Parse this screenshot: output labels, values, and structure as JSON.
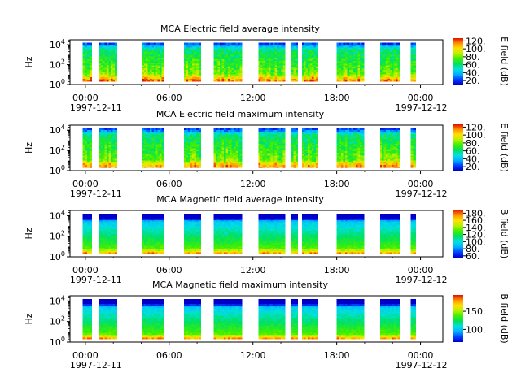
{
  "colors": {
    "colormap": [
      "#0000c8",
      "#0040ff",
      "#00b0ff",
      "#00e0e0",
      "#00e060",
      "#40f000",
      "#b8f000",
      "#ffe000",
      "#ff9000",
      "#e01000"
    ],
    "axes": "#000000",
    "background": "#ffffff"
  },
  "chart_data": [
    {
      "type": "heatmap",
      "title": "MCA  Electric field average intensity",
      "ylabel": "Hz",
      "yscale": "log",
      "yticks": [
        {
          "base": "10",
          "exp": "0"
        },
        {
          "base": "10",
          "exp": "2"
        },
        {
          "base": "10",
          "exp": "4"
        }
      ],
      "xticks": [
        "00:00",
        "06:00",
        "12:00",
        "18:00",
        "00:00"
      ],
      "xtick_hours": [
        0,
        6,
        12,
        18,
        24
      ],
      "date_start": "1997-12-11",
      "date_end": "1997-12-12",
      "colorbar": {
        "label": "E field (dB)",
        "ticks": [
          "20.",
          "40.",
          "60.",
          "80.",
          "100.",
          "120."
        ],
        "tick_values": [
          20,
          40,
          60,
          80,
          100,
          120
        ],
        "range": [
          10,
          127
        ]
      },
      "data_intervals_hours": [
        [
          -0.2,
          0.45
        ],
        [
          0.95,
          2.25
        ],
        [
          4.05,
          5.6
        ],
        [
          7.05,
          8.25
        ],
        [
          9.2,
          11.2
        ],
        [
          12.4,
          14.3
        ],
        [
          14.75,
          15.2
        ],
        [
          15.5,
          16.65
        ],
        [
          18.0,
          19.95
        ],
        [
          21.1,
          22.5
        ],
        [
          23.3,
          23.65
        ]
      ],
      "level_profile": "hot"
    },
    {
      "type": "heatmap",
      "title": "MCA  Electric field maximum intensity",
      "ylabel": "Hz",
      "yscale": "log",
      "yticks": [
        {
          "base": "10",
          "exp": "0"
        },
        {
          "base": "10",
          "exp": "2"
        },
        {
          "base": "10",
          "exp": "4"
        }
      ],
      "xticks": [
        "00:00",
        "06:00",
        "12:00",
        "18:00",
        "00:00"
      ],
      "xtick_hours": [
        0,
        6,
        12,
        18,
        24
      ],
      "date_start": "1997-12-11",
      "date_end": "1997-12-12",
      "colorbar": {
        "label": "E field (dB)",
        "ticks": [
          "20.",
          "40.",
          "60.",
          "80.",
          "100.",
          "120."
        ],
        "tick_values": [
          20,
          40,
          60,
          80,
          100,
          120
        ],
        "range": [
          10,
          127
        ]
      },
      "data_intervals_hours": [
        [
          -0.2,
          0.45
        ],
        [
          0.95,
          2.25
        ],
        [
          4.05,
          5.6
        ],
        [
          7.05,
          8.25
        ],
        [
          9.2,
          11.2
        ],
        [
          12.4,
          14.3
        ],
        [
          14.75,
          15.2
        ],
        [
          15.5,
          16.65
        ],
        [
          18.0,
          19.95
        ],
        [
          21.1,
          22.5
        ],
        [
          23.3,
          23.65
        ]
      ],
      "level_profile": "hot"
    },
    {
      "type": "heatmap",
      "title": "MCA  Magnetic field average intensity",
      "ylabel": "Hz",
      "yscale": "log",
      "yticks": [
        {
          "base": "10",
          "exp": "0"
        },
        {
          "base": "10",
          "exp": "2"
        },
        {
          "base": "10",
          "exp": "4"
        }
      ],
      "xticks": [
        "00:00",
        "06:00",
        "12:00",
        "18:00",
        "00:00"
      ],
      "xtick_hours": [
        0,
        6,
        12,
        18,
        24
      ],
      "date_start": "1997-12-11",
      "date_end": "1997-12-12",
      "colorbar": {
        "label": "B field (dB)",
        "ticks": [
          "60.",
          "80.",
          "100.",
          "120.",
          "140.",
          "160.",
          "180."
        ],
        "tick_values": [
          60,
          80,
          100,
          120,
          140,
          160,
          180
        ],
        "range": [
          55,
          190
        ]
      },
      "data_intervals_hours": [
        [
          -0.2,
          0.45
        ],
        [
          0.95,
          2.25
        ],
        [
          4.05,
          5.6
        ],
        [
          7.05,
          8.25
        ],
        [
          9.2,
          11.2
        ],
        [
          12.4,
          14.3
        ],
        [
          14.75,
          15.2
        ],
        [
          15.5,
          16.65
        ],
        [
          18.0,
          19.95
        ],
        [
          21.1,
          22.5
        ],
        [
          23.3,
          23.65
        ]
      ],
      "level_profile": "cool"
    },
    {
      "type": "heatmap",
      "title": "MCA  Magnetic field maximum intensity",
      "ylabel": "Hz",
      "yscale": "log",
      "yticks": [
        {
          "base": "10",
          "exp": "0"
        },
        {
          "base": "10",
          "exp": "2"
        },
        {
          "base": "10",
          "exp": "4"
        }
      ],
      "xticks": [
        "00:00",
        "06:00",
        "12:00",
        "18:00",
        "00:00"
      ],
      "xtick_hours": [
        0,
        6,
        12,
        18,
        24
      ],
      "date_start": "1997-12-11",
      "date_end": "1997-12-12",
      "colorbar": {
        "label": "B field (dB)",
        "ticks": [
          "100.",
          "150."
        ],
        "tick_values": [
          100,
          150
        ],
        "range": [
          65,
          195
        ]
      },
      "data_intervals_hours": [
        [
          -0.2,
          0.45
        ],
        [
          0.95,
          2.25
        ],
        [
          4.05,
          5.6
        ],
        [
          7.05,
          8.25
        ],
        [
          9.2,
          11.2
        ],
        [
          12.4,
          14.3
        ],
        [
          14.75,
          15.2
        ],
        [
          15.5,
          16.65
        ],
        [
          18.0,
          19.95
        ],
        [
          21.1,
          22.5
        ],
        [
          23.3,
          23.65
        ]
      ],
      "level_profile": "cool"
    }
  ]
}
